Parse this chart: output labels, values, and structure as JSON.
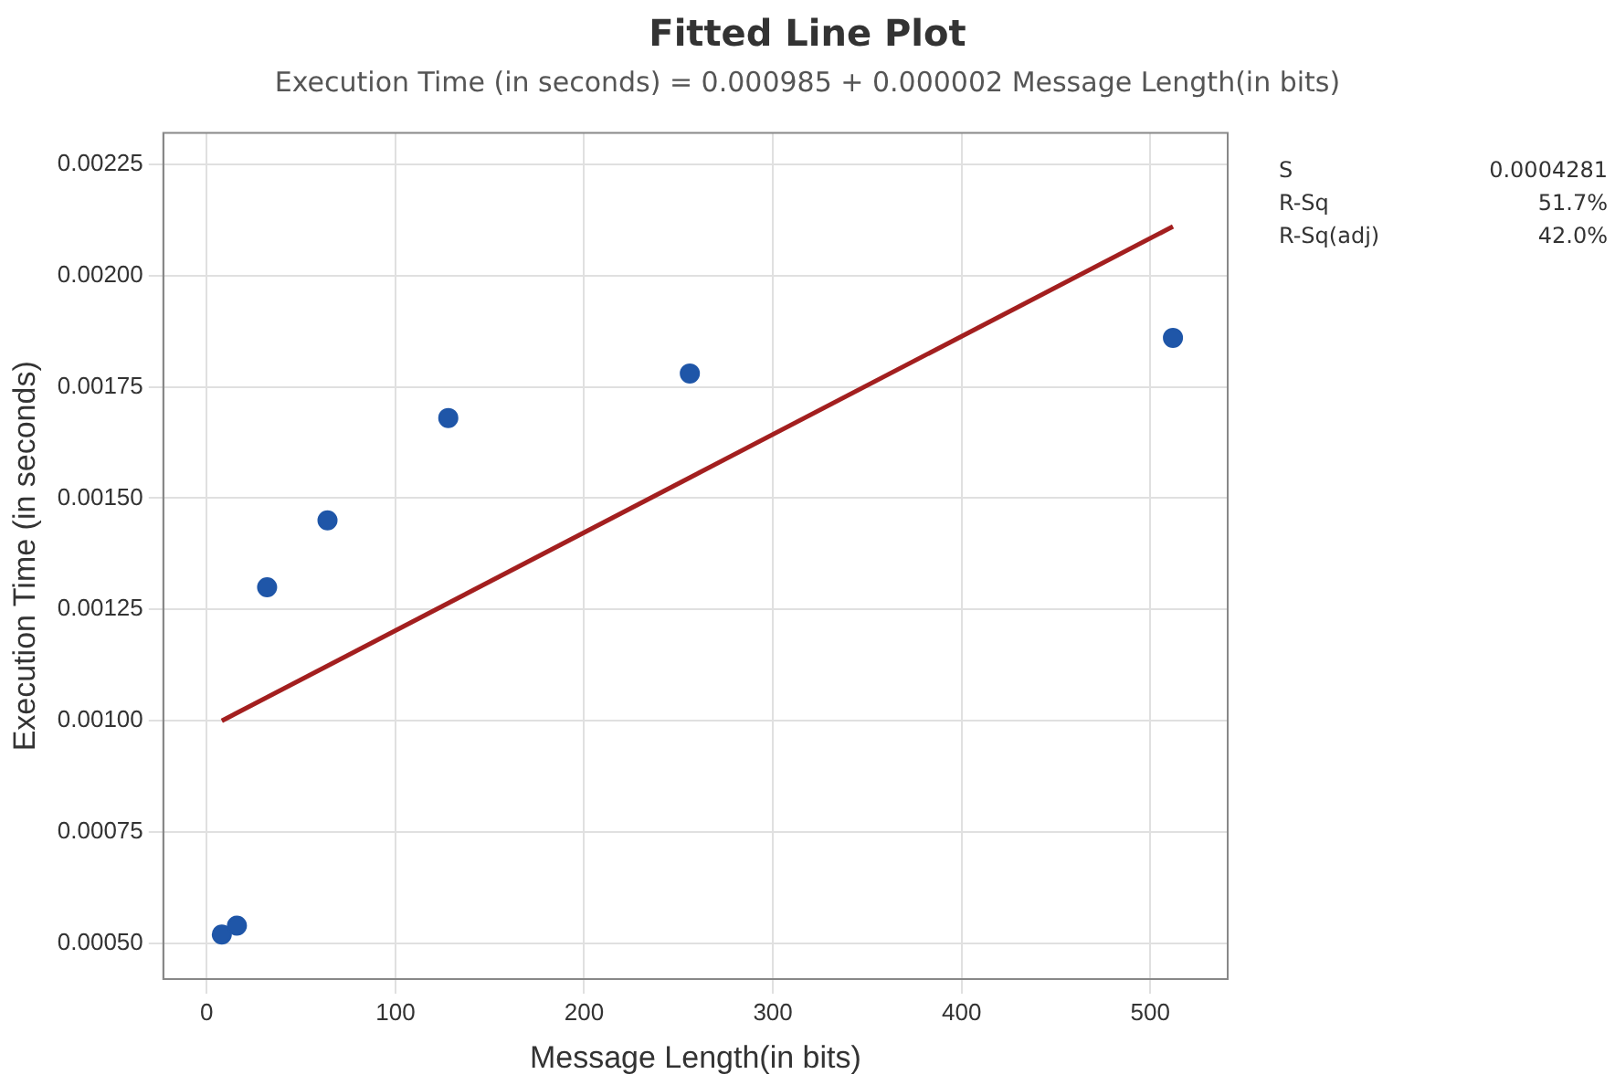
{
  "chart_data": {
    "type": "scatter",
    "title": "Fitted Line Plot",
    "subtitle": "Execution Time (in seconds) = 0.000985 + 0.000002 Message Length(in bits)",
    "xlabel": "Message Length(in bits)",
    "ylabel": "Execution Time (in seconds)",
    "series": [
      {
        "color": "#1f56a8",
        "marker": "circle",
        "x": [
          8,
          16,
          32,
          64,
          128,
          256,
          512
        ],
        "values": [
          0.00052,
          0.00054,
          0.0013,
          0.00145,
          0.00168,
          0.00178,
          0.00186
        ]
      },
      {
        "type": "line",
        "marker": "none",
        "color": "#a31f1f",
        "x": [
          8,
          512
        ],
        "values": [
          0.001,
          0.00211
        ]
      }
    ],
    "xlim": [
      -23,
      541
    ],
    "xticks": [
      0,
      100,
      200,
      300,
      400,
      500
    ],
    "ylim": [
      0.00042,
      0.00232
    ],
    "yticks": [
      {
        "value": 0.0005,
        "label": "0.00050"
      },
      {
        "value": 0.00075,
        "label": "0.00075"
      },
      {
        "value": 0.001,
        "label": "0.00100"
      },
      {
        "value": 0.00125,
        "label": "0.00125"
      },
      {
        "value": 0.0015,
        "label": "0.00150"
      },
      {
        "value": 0.00175,
        "label": "0.00175"
      },
      {
        "value": 0.002,
        "label": "0.00200"
      },
      {
        "value": 0.00225,
        "label": "0.00225"
      }
    ],
    "grid": true,
    "legend": false,
    "annotations": [
      "S",
      "0.0004281",
      "R-Sq",
      "51.7%",
      "R-Sq(adj)",
      "42.0%"
    ]
  }
}
